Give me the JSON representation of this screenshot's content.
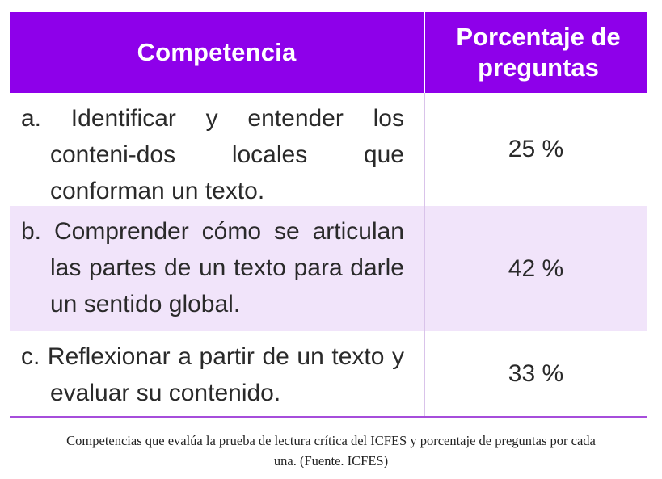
{
  "table": {
    "header": {
      "competencia": "Competencia",
      "porcentaje_line1": "Porcentaje de",
      "porcentaje_line2": "preguntas"
    },
    "rows": [
      {
        "competencia": "a. Identificar y entender los conteni-dos locales que conforman un texto.",
        "porcentaje": "25 %"
      },
      {
        "competencia": "b. Comprender cómo se articulan las partes de un texto para darle un sentido global.",
        "porcentaje": "42 %"
      },
      {
        "competencia": "c. Reflexionar a partir de un texto y evaluar su contenido.",
        "porcentaje": "33 %"
      }
    ],
    "colors": {
      "header_bg": "#8e00ea",
      "alt_row_bg": "#f1e4fa",
      "bottom_rule": "#a64ddb"
    }
  },
  "caption": {
    "line1": "Competencias que evalúa la prueba de lectura crítica del ICFES y porcentaje de preguntas por cada",
    "line2": "una. (Fuente. ICFES)"
  }
}
